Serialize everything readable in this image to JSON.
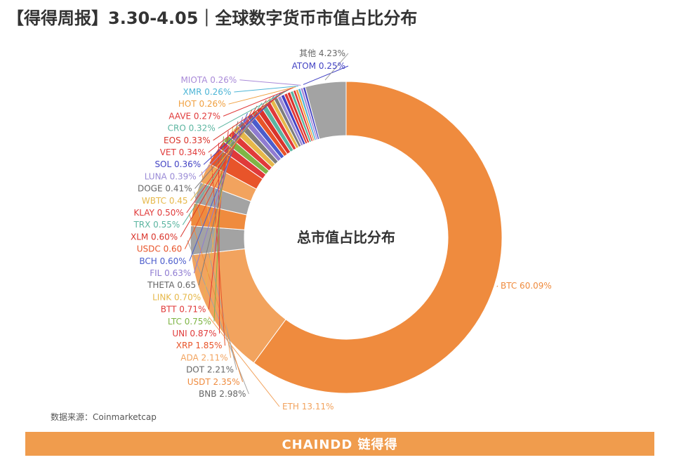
{
  "title": "【得得周报】3.30-4.05｜全球数字货币市值占比分布",
  "source": "数据来源：Coinmarketcap",
  "banner": "CHAINDD 链得得",
  "chart_data": {
    "type": "pie",
    "donut": true,
    "center_label": "总市值占比分布",
    "slices": [
      {
        "name": "BTC",
        "value": 60.09,
        "label": "BTC 60.09%",
        "color": "#ef8b3e"
      },
      {
        "name": "ETH",
        "value": 13.11,
        "label": "ETH 13.11%",
        "color": "#f2a35e"
      },
      {
        "name": "BNB",
        "value": 2.98,
        "label": "BNB 2.98%",
        "color": "#a3a3a3"
      },
      {
        "name": "USDT",
        "value": 2.35,
        "label": "USDT 2.35%",
        "color": "#ef8b3e"
      },
      {
        "name": "DOT",
        "value": 2.21,
        "label": "DOT 2.21%",
        "color": "#a3a3a3"
      },
      {
        "name": "ADA",
        "value": 2.11,
        "label": "ADA 2.11%",
        "color": "#f2a35e"
      },
      {
        "name": "XRP",
        "value": 1.85,
        "label": "XRP 1.85%",
        "color": "#e8542a"
      },
      {
        "name": "UNI",
        "value": 0.87,
        "label": "UNI 0.87%",
        "color": "#e03a3a"
      },
      {
        "name": "LTC",
        "value": 0.75,
        "label": "LTC 0.75%",
        "color": "#7fb546"
      },
      {
        "name": "BTT",
        "value": 0.71,
        "label": "BTT 0.71%",
        "color": "#e03a3a"
      },
      {
        "name": "LINK",
        "value": 0.7,
        "label": "LINK 0.70%",
        "color": "#e6b84a"
      },
      {
        "name": "THETA",
        "value": 0.65,
        "label": "THETA 0.65",
        "color": "#7d7d7d"
      },
      {
        "name": "FIL",
        "value": 0.63,
        "label": "FIL 0.63%",
        "color": "#8f7bd1"
      },
      {
        "name": "BCH",
        "value": 0.6,
        "label": "BCH 0.60%",
        "color": "#4b5ccc"
      },
      {
        "name": "USDC",
        "value": 0.6,
        "label": "USDC 0.60",
        "color": "#e8542a"
      },
      {
        "name": "XLM",
        "value": 0.6,
        "label": "XLM 0.60%",
        "color": "#d9342b"
      },
      {
        "name": "TRX",
        "value": 0.55,
        "label": "TRX 0.55%",
        "color": "#5bb5a0"
      },
      {
        "name": "KLAY",
        "value": 0.5,
        "label": "KLAY 0.50%",
        "color": "#e03a3a"
      },
      {
        "name": "WBTC",
        "value": 0.45,
        "label": "WBTC 0.45",
        "color": "#e6b84a"
      },
      {
        "name": "DOGE",
        "value": 0.41,
        "label": "DOGE 0.41%",
        "color": "#7d7d7d"
      },
      {
        "name": "LUNA",
        "value": 0.39,
        "label": "LUNA 0.39%",
        "color": "#9a8bd6"
      },
      {
        "name": "SOL",
        "value": 0.36,
        "label": "SOL 0.36%",
        "color": "#4343c4"
      },
      {
        "name": "VET",
        "value": 0.34,
        "label": "VET 0.34%",
        "color": "#e03a3a"
      },
      {
        "name": "EOS",
        "value": 0.33,
        "label": "EOS 0.33%",
        "color": "#d9342b"
      },
      {
        "name": "CRO",
        "value": 0.32,
        "label": "CRO 0.32%",
        "color": "#5bb5a0"
      },
      {
        "name": "AAVE",
        "value": 0.27,
        "label": "AAVE 0.27%",
        "color": "#e03a3a"
      },
      {
        "name": "HOT",
        "value": 0.26,
        "label": "HOT 0.26%",
        "color": "#f0a040"
      },
      {
        "name": "XMR",
        "value": 0.26,
        "label": "XMR 0.26%",
        "color": "#4db5d6"
      },
      {
        "name": "MIOTA",
        "value": 0.26,
        "label": "MIOTA 0.26%",
        "color": "#a98ad8"
      },
      {
        "name": "ATOM",
        "value": 0.25,
        "label": "ATOM 0.25%",
        "color": "#4343c4"
      },
      {
        "name": "其他",
        "value": 4.23,
        "label": "其他 4.23%",
        "color": "#a3a3a3"
      }
    ]
  }
}
